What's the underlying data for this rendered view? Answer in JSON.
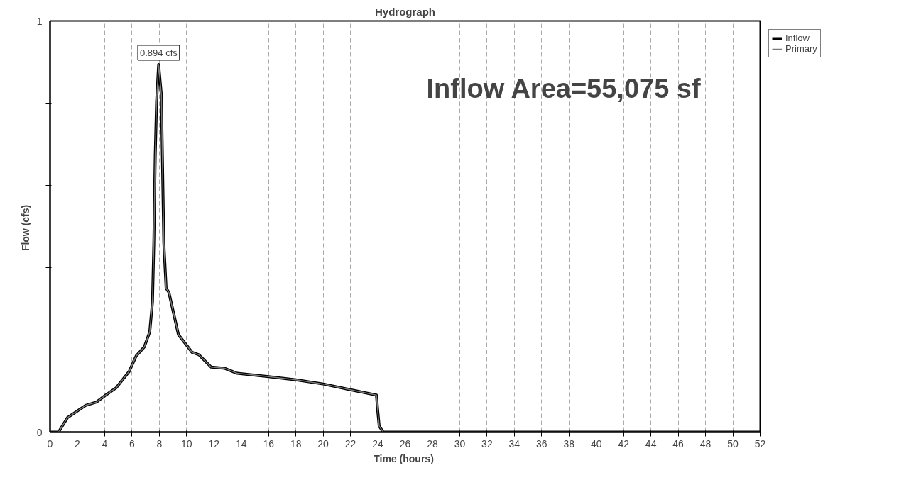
{
  "chart_data": {
    "type": "line",
    "title": "Hydrograph",
    "xlabel": "Time  (hours)",
    "ylabel": "Flow  (cfs)",
    "x": [
      0,
      0.62,
      1.27,
      2.6,
      3.4,
      4.0,
      4.85,
      5.8,
      6.3,
      6.9,
      7.3,
      7.5,
      7.6,
      7.7,
      7.8,
      7.95,
      8.15,
      8.25,
      8.33,
      8.5,
      8.7,
      9.4,
      10.4,
      10.9,
      11.8,
      12.8,
      13.7,
      16,
      18,
      20,
      22,
      23.9,
      24.0,
      24.1,
      24.4,
      52
    ],
    "series": [
      {
        "name": "Inflow",
        "color": "#000000",
        "values": [
          0,
          0,
          0.035,
          0.065,
          0.073,
          0.088,
          0.108,
          0.148,
          0.185,
          0.207,
          0.244,
          0.317,
          0.46,
          0.672,
          0.804,
          0.894,
          0.82,
          0.62,
          0.46,
          0.35,
          0.34,
          0.237,
          0.194,
          0.188,
          0.158,
          0.155,
          0.143,
          0.135,
          0.127,
          0.117,
          0.103,
          0.09,
          0.05,
          0.015,
          0,
          0
        ]
      },
      {
        "name": "Primary",
        "color": "#7a7a7a",
        "values": [
          0,
          0,
          0.035,
          0.065,
          0.073,
          0.088,
          0.108,
          0.148,
          0.185,
          0.207,
          0.244,
          0.317,
          0.46,
          0.672,
          0.804,
          0.894,
          0.82,
          0.62,
          0.46,
          0.35,
          0.34,
          0.237,
          0.194,
          0.188,
          0.158,
          0.155,
          0.143,
          0.135,
          0.127,
          0.117,
          0.103,
          0.09,
          0.05,
          0.015,
          0,
          0
        ]
      }
    ],
    "xlim": [
      0,
      52
    ],
    "xticks": [
      0,
      2,
      4,
      6,
      8,
      10,
      12,
      14,
      16,
      18,
      20,
      22,
      24,
      26,
      28,
      30,
      32,
      34,
      36,
      38,
      40,
      42,
      44,
      46,
      48,
      50,
      52
    ],
    "ylim": [
      0,
      1
    ],
    "yticks": [
      0,
      {
        "value": 0.2,
        "label": null
      },
      {
        "value": 0.4,
        "label": null
      },
      {
        "value": 0.6,
        "label": null
      },
      {
        "value": 0.8,
        "label": null
      },
      1
    ],
    "annotations": [
      {
        "text": "0.894 cfs",
        "x": 7.95,
        "y": 0.894
      },
      "Inflow Area=55,075 sf"
    ],
    "grid": "x",
    "legend": "top right",
    "marker": "none",
    "line_style": "solid"
  }
}
